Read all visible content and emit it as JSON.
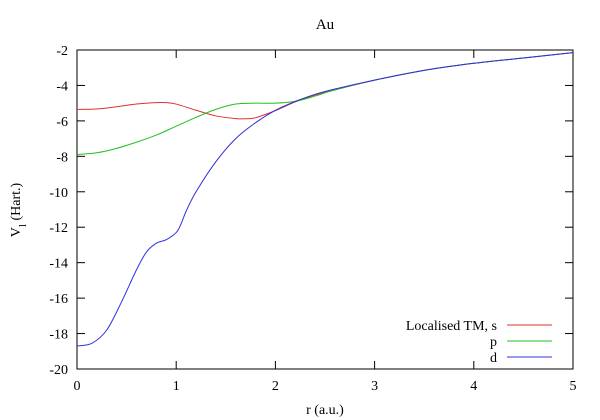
{
  "chart_data": {
    "type": "line",
    "title": "Au",
    "xlabel": "r (a.u.)",
    "ylabel_main": "V",
    "ylabel_sub": "l",
    "ylabel_rest": " (Hart.)",
    "xlim": [
      0,
      5
    ],
    "ylim": [
      -20,
      -2
    ],
    "xticks": [
      0,
      1,
      2,
      3,
      4,
      5
    ],
    "yticks": [
      -20,
      -18,
      -16,
      -14,
      -12,
      -10,
      -8,
      -6,
      -4,
      -2
    ],
    "grid": false,
    "legend_position": "bottom-right",
    "series": [
      {
        "name": "Localised TM, s",
        "color": "#e03030",
        "x": [
          0,
          0.2,
          0.4,
          0.6,
          0.8,
          0.9,
          1.0,
          1.2,
          1.4,
          1.6,
          1.7,
          1.8,
          2.0,
          2.2,
          2.4,
          2.6,
          3.0,
          3.5,
          4.0,
          4.5,
          5.0
        ],
        "y": [
          -5.35,
          -5.33,
          -5.2,
          -5.05,
          -4.97,
          -4.97,
          -5.05,
          -5.4,
          -5.72,
          -5.87,
          -5.88,
          -5.82,
          -5.42,
          -4.93,
          -4.55,
          -4.25,
          -3.7,
          -3.15,
          -2.75,
          -2.45,
          -2.15
        ]
      },
      {
        "name": "p",
        "color": "#20c020",
        "x": [
          0,
          0.2,
          0.4,
          0.6,
          0.8,
          1.0,
          1.2,
          1.4,
          1.6,
          1.8,
          2.0,
          2.2,
          2.4,
          2.6,
          3.0,
          3.5,
          4.0,
          4.5,
          5.0
        ],
        "y": [
          -7.9,
          -7.8,
          -7.55,
          -7.2,
          -6.8,
          -6.3,
          -5.8,
          -5.35,
          -5.05,
          -5.0,
          -5.0,
          -4.9,
          -4.6,
          -4.25,
          -3.7,
          -3.15,
          -2.75,
          -2.45,
          -2.15
        ]
      },
      {
        "name": "d",
        "color": "#3030e0",
        "x": [
          0,
          0.15,
          0.3,
          0.45,
          0.6,
          0.7,
          0.8,
          0.9,
          1.0,
          1.05,
          1.1,
          1.2,
          1.4,
          1.6,
          1.8,
          2.0,
          2.2,
          2.4,
          2.6,
          3.0,
          3.5,
          4.0,
          4.5,
          5.0
        ],
        "y": [
          -18.7,
          -18.55,
          -17.8,
          -16.2,
          -14.4,
          -13.4,
          -12.9,
          -12.7,
          -12.3,
          -11.8,
          -11.1,
          -10.0,
          -8.3,
          -7.0,
          -6.1,
          -5.4,
          -4.9,
          -4.5,
          -4.2,
          -3.7,
          -3.15,
          -2.75,
          -2.45,
          -2.15
        ]
      }
    ]
  }
}
